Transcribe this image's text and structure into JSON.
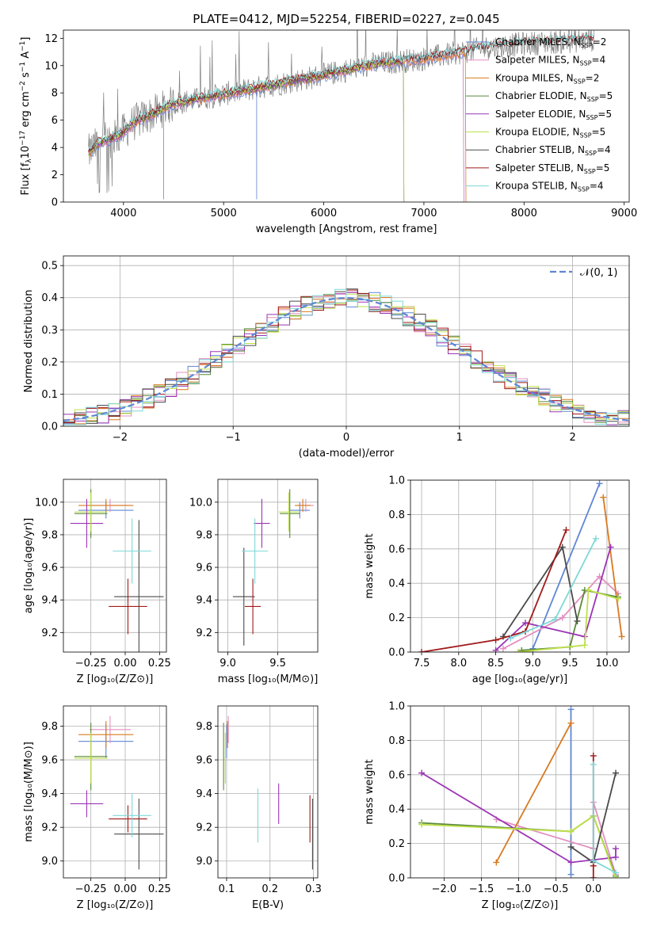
{
  "figure_title": "PLATE=0412, MJD=52254, FIBERID=0227, z=0.045",
  "palette": {
    "Chabrier MILES": "#5f86d4",
    "Salpeter MILES": "#e38fc0",
    "Kroupa MILES": "#d9791f",
    "Chabrier ELODIE": "#5a8a3c",
    "Salpeter ELODIE": "#9b35b5",
    "Kroupa ELODIE": "#bfe04a",
    "Chabrier STELIB": "#4a4a4a",
    "Salpeter STELIB": "#a11a1a",
    "Kroupa STELIB": "#7fd8d8",
    "data": "#808080",
    "normal": "#5f86d4"
  },
  "chart_data": [
    {
      "id": "spectrum",
      "type": "line",
      "title": "PLATE=0412, MJD=52254, FIBERID=0227, z=0.045",
      "xlabel": "wavelength [Angstrom, rest frame]",
      "ylabel_parts": [
        "Flux [f",
        "λ",
        "10",
        "−17",
        " erg cm",
        "−2",
        " s",
        "−1",
        " A",
        "−1",
        "]"
      ],
      "xlim": [
        3400,
        9050
      ],
      "ylim": [
        0,
        12.6
      ],
      "xticks": [
        4000,
        5000,
        6000,
        7000,
        8000,
        9000
      ],
      "yticks": [
        0,
        2,
        4,
        6,
        8,
        10,
        12
      ],
      "continuum": {
        "x": [
          3650,
          3750,
          3950,
          4100,
          4500,
          5000,
          5500,
          6000,
          6500,
          7000,
          7400,
          7600,
          8000,
          8500,
          8700
        ],
        "y": [
          3.6,
          4.3,
          4.8,
          5.8,
          7.2,
          7.9,
          8.6,
          9.3,
          10.1,
          10.5,
          11.0,
          11.3,
          11.6,
          11.8,
          11.9
        ]
      },
      "legend": [
        {
          "label": "Chabrier MILES, N",
          "sub": "SSP",
          "tail": "=2"
        },
        {
          "label": "Salpeter MILES, N",
          "sub": "SSP",
          "tail": "=4"
        },
        {
          "label": "Kroupa MILES, N",
          "sub": "SSP",
          "tail": "=2"
        },
        {
          "label": "Chabrier ELODIE, N",
          "sub": "SSP",
          "tail": "=5"
        },
        {
          "label": "Salpeter ELODIE, N",
          "sub": "SSP",
          "tail": "=5"
        },
        {
          "label": "Kroupa ELODIE, N",
          "sub": "SSP",
          "tail": "=5"
        },
        {
          "label": "Chabrier STELIB, N",
          "sub": "SSP",
          "tail": "=4"
        },
        {
          "label": "Salpeter STELIB, N",
          "sub": "SSP",
          "tail": "=5"
        },
        {
          "label": "Kroupa STELIB, N",
          "sub": "SSP",
          "tail": "=4"
        }
      ],
      "model_coverage": [
        {
          "name": "Chabrier MILES",
          "xmax": 7400
        },
        {
          "name": "Salpeter MILES",
          "xmax": 7400
        },
        {
          "name": "Kroupa MILES",
          "xmax": 7420
        },
        {
          "name": "Chabrier ELODIE",
          "xmax": 6800
        },
        {
          "name": "Salpeter ELODIE",
          "xmax": 6800
        },
        {
          "name": "Kroupa ELODIE",
          "xmax": 6800
        },
        {
          "name": "Chabrier STELIB",
          "xmax": 8700
        },
        {
          "name": "Salpeter STELIB",
          "xmax": 8700
        },
        {
          "name": "Kroupa STELIB",
          "xmax": 8700
        }
      ]
    },
    {
      "id": "residuals",
      "type": "histogram",
      "xlabel": "(data-model)/error",
      "ylabel": "Normed distribution",
      "xlim": [
        -2.5,
        2.5
      ],
      "ylim": [
        0,
        0.53
      ],
      "xticks": [
        -2,
        -1,
        0,
        1,
        2
      ],
      "yticks": [
        0.0,
        0.1,
        0.2,
        0.3,
        0.4,
        0.5
      ],
      "legend": "𝒩(0, 1)",
      "bin_width": 0.1
    },
    {
      "id": "z_age",
      "type": "errorbar",
      "xlabel": "Z [log₁₀(Z/Z⊙)]",
      "ylabel": "age  [log₁₀(age/yr)]",
      "xlim": [
        -0.45,
        0.3
      ],
      "ylim": [
        9.08,
        10.14
      ],
      "xticks": [
        -0.25,
        0.0,
        0.25
      ],
      "yticks": [
        9.2,
        9.4,
        9.6,
        9.8,
        10.0
      ],
      "points": [
        {
          "name": "Chabrier MILES",
          "x": -0.14,
          "xerr": 0.2,
          "y": 9.95,
          "yerr": 0.05
        },
        {
          "name": "Salpeter MILES",
          "x": -0.11,
          "xerr": 0.15,
          "y": 9.98,
          "yerr": 0.04
        },
        {
          "name": "Kroupa MILES",
          "x": -0.14,
          "xerr": 0.2,
          "y": 9.98,
          "yerr": 0.04
        },
        {
          "name": "Chabrier ELODIE",
          "x": -0.25,
          "xerr": 0.12,
          "y": 9.93,
          "yerr": 0.15
        },
        {
          "name": "Salpeter ELODIE",
          "x": -0.28,
          "xerr": 0.12,
          "y": 9.87,
          "yerr": 0.15
        },
        {
          "name": "Kroupa ELODIE",
          "x": -0.25,
          "xerr": 0.12,
          "y": 9.94,
          "yerr": 0.12
        },
        {
          "name": "Chabrier STELIB",
          "x": 0.1,
          "xerr": 0.18,
          "y": 9.42,
          "yerr": 0.47
        },
        {
          "name": "Salpeter STELIB",
          "x": 0.02,
          "xerr": 0.14,
          "y": 9.36,
          "yerr": 0.17
        },
        {
          "name": "Kroupa STELIB",
          "x": 0.05,
          "xerr": 0.14,
          "y": 9.7,
          "yerr": 0.2
        }
      ]
    },
    {
      "id": "mass_age",
      "type": "errorbar",
      "xlabel": "mass [log₁₀(M/M⊙)]",
      "ylabel": "",
      "xlim": [
        8.9,
        9.9
      ],
      "ylim": [
        9.08,
        10.14
      ],
      "xticks": [
        9.0,
        9.5
      ],
      "yticks": [
        9.2,
        9.4,
        9.6,
        9.8,
        10.0
      ],
      "points": [
        {
          "name": "Chabrier MILES",
          "x": 9.72,
          "xerr": 0.1,
          "y": 9.95,
          "yerr": 0.05
        },
        {
          "name": "Salpeter MILES",
          "x": 9.78,
          "xerr": 0.08,
          "y": 9.98,
          "yerr": 0.04
        },
        {
          "name": "Kroupa MILES",
          "x": 9.75,
          "xerr": 0.08,
          "y": 9.98,
          "yerr": 0.04
        },
        {
          "name": "Chabrier ELODIE",
          "x": 9.62,
          "xerr": 0.1,
          "y": 9.93,
          "yerr": 0.15
        },
        {
          "name": "Salpeter ELODIE",
          "x": 9.34,
          "xerr": 0.08,
          "y": 9.87,
          "yerr": 0.15
        },
        {
          "name": "Kroupa ELODIE",
          "x": 9.61,
          "xerr": 0.1,
          "y": 9.94,
          "yerr": 0.12
        },
        {
          "name": "Chabrier STELIB",
          "x": 9.16,
          "xerr": 0.11,
          "y": 9.42,
          "yerr": 0.3
        },
        {
          "name": "Salpeter STELIB",
          "x": 9.25,
          "xerr": 0.08,
          "y": 9.36,
          "yerr": 0.17
        },
        {
          "name": "Kroupa STELIB",
          "x": 9.27,
          "xerr": 0.13,
          "y": 9.7,
          "yerr": 0.2
        }
      ]
    },
    {
      "id": "age_weight",
      "type": "line",
      "xlabel": "age  [log₁₀(age/yr)]",
      "ylabel": "mass weight",
      "xlim": [
        7.35,
        10.3
      ],
      "ylim": [
        0,
        1.0
      ],
      "xticks": [
        7.5,
        8.0,
        8.5,
        9.0,
        9.5,
        10.0
      ],
      "yticks": [
        0.0,
        0.2,
        0.4,
        0.6,
        0.8,
        1.0
      ],
      "series": [
        {
          "name": "Chabrier MILES",
          "x": [
            9.0,
            9.9
          ],
          "y": [
            0.02,
            0.98
          ]
        },
        {
          "name": "Salpeter MILES",
          "x": [
            8.6,
            9.4,
            9.9,
            10.15
          ],
          "y": [
            0.02,
            0.2,
            0.44,
            0.34
          ]
        },
        {
          "name": "Kroupa MILES",
          "x": [
            9.95,
            10.2
          ],
          "y": [
            0.9,
            0.09
          ]
        },
        {
          "name": "Chabrier ELODIE",
          "x": [
            8.85,
            9.5,
            9.7,
            10.15
          ],
          "y": [
            0.01,
            0.03,
            0.36,
            0.32
          ]
        },
        {
          "name": "Salpeter ELODIE",
          "x": [
            8.5,
            8.9,
            9.7,
            10.05
          ],
          "y": [
            0.01,
            0.17,
            0.09,
            0.61
          ]
        },
        {
          "name": "Kroupa ELODIE",
          "x": [
            8.8,
            9.7,
            9.75,
            10.15
          ],
          "y": [
            0.0,
            0.04,
            0.36,
            0.31
          ]
        },
        {
          "name": "Chabrier STELIB",
          "x": [
            8.6,
            9.4,
            9.6
          ],
          "y": [
            0.09,
            0.61,
            0.18
          ]
        },
        {
          "name": "Salpeter STELIB",
          "x": [
            7.5,
            8.5,
            8.9,
            9.45
          ],
          "y": [
            0.0,
            0.07,
            0.12,
            0.71
          ]
        },
        {
          "name": "Kroupa STELIB",
          "x": [
            8.7,
            9.3,
            9.85
          ],
          "y": [
            0.08,
            0.19,
            0.66
          ]
        }
      ]
    },
    {
      "id": "z_mass",
      "type": "errorbar",
      "xlabel": "Z [log₁₀(Z/Z⊙)]",
      "ylabel": "mass [log₁₀(M/M⊙)]",
      "xlim": [
        -0.45,
        0.3
      ],
      "ylim": [
        8.9,
        9.92
      ],
      "xticks": [
        -0.25,
        0.0,
        0.25
      ],
      "yticks": [
        9.0,
        9.2,
        9.4,
        9.6,
        9.8
      ],
      "points": [
        {
          "name": "Chabrier MILES",
          "x": -0.14,
          "xerr": 0.2,
          "y": 9.71,
          "yerr": 0.1
        },
        {
          "name": "Salpeter MILES",
          "x": -0.11,
          "xerr": 0.15,
          "y": 9.78,
          "yerr": 0.08
        },
        {
          "name": "Kroupa MILES",
          "x": -0.14,
          "xerr": 0.2,
          "y": 9.75,
          "yerr": 0.08
        },
        {
          "name": "Chabrier ELODIE",
          "x": -0.25,
          "xerr": 0.12,
          "y": 9.62,
          "yerr": 0.2
        },
        {
          "name": "Salpeter ELODIE",
          "x": -0.28,
          "xerr": 0.12,
          "y": 9.34,
          "yerr": 0.08
        },
        {
          "name": "Kroupa ELODIE",
          "x": -0.25,
          "xerr": 0.12,
          "y": 9.61,
          "yerr": 0.15
        },
        {
          "name": "Chabrier STELIB",
          "x": 0.1,
          "xerr": 0.18,
          "y": 9.16,
          "yerr": 0.21
        },
        {
          "name": "Salpeter STELIB",
          "x": 0.02,
          "xerr": 0.14,
          "y": 9.25,
          "yerr": 0.08
        },
        {
          "name": "Kroupa STELIB",
          "x": 0.05,
          "xerr": 0.14,
          "y": 9.27,
          "yerr": 0.13
        }
      ]
    },
    {
      "id": "ebv_mass",
      "type": "errorbar",
      "xlabel": "E(B-V)",
      "ylabel": "",
      "xlim": [
        0.08,
        0.31
      ],
      "ylim": [
        8.9,
        9.92
      ],
      "xticks": [
        0.1,
        0.2,
        0.3
      ],
      "yticks": [
        9.0,
        9.2,
        9.4,
        9.6,
        9.8
      ],
      "points": [
        {
          "name": "Chabrier MILES",
          "x": 0.1,
          "xerr": 0,
          "y": 9.71,
          "yerr": 0.1
        },
        {
          "name": "Salpeter MILES",
          "x": 0.104,
          "xerr": 0,
          "y": 9.78,
          "yerr": 0.08
        },
        {
          "name": "Kroupa MILES",
          "x": 0.102,
          "xerr": 0,
          "y": 9.75,
          "yerr": 0.08
        },
        {
          "name": "Chabrier ELODIE",
          "x": 0.093,
          "xerr": 0,
          "y": 9.62,
          "yerr": 0.2
        },
        {
          "name": "Salpeter ELODIE",
          "x": 0.22,
          "xerr": 0,
          "y": 9.34,
          "yerr": 0.12
        },
        {
          "name": "Kroupa ELODIE",
          "x": 0.097,
          "xerr": 0,
          "y": 9.61,
          "yerr": 0.15
        },
        {
          "name": "Chabrier STELIB",
          "x": 0.298,
          "xerr": 0,
          "y": 9.16,
          "yerr": 0.21
        },
        {
          "name": "Salpeter STELIB",
          "x": 0.292,
          "xerr": 0,
          "y": 9.25,
          "yerr": 0.14
        },
        {
          "name": "Kroupa STELIB",
          "x": 0.172,
          "xerr": 0,
          "y": 9.27,
          "yerr": 0.16
        }
      ]
    },
    {
      "id": "z_weight",
      "type": "line",
      "xlabel": "Z [log₁₀(Z/Z⊙)]",
      "ylabel": "mass weight",
      "xlim": [
        -2.45,
        0.48
      ],
      "ylim": [
        0,
        1.0
      ],
      "xticks": [
        -2.0,
        -1.5,
        -1.0,
        -0.5,
        0.0
      ],
      "yticks": [
        0.0,
        0.2,
        0.4,
        0.6,
        0.8,
        1.0
      ],
      "series": [
        {
          "name": "Chabrier MILES",
          "x": [
            -0.3,
            -0.3
          ],
          "y": [
            0.02,
            0.98
          ]
        },
        {
          "name": "Salpeter MILES",
          "x": [
            -1.3,
            0.0,
            0.0,
            0.3
          ],
          "y": [
            0.34,
            0.17,
            0.44,
            0.02
          ]
        },
        {
          "name": "Kroupa MILES",
          "x": [
            -1.3,
            -0.3
          ],
          "y": [
            0.09,
            0.9
          ]
        },
        {
          "name": "Chabrier ELODIE",
          "x": [
            -2.3,
            -0.3,
            0.0,
            0.3
          ],
          "y": [
            0.32,
            0.27,
            0.36,
            0.01
          ]
        },
        {
          "name": "Salpeter ELODIE",
          "x": [
            -2.3,
            -0.3,
            0.3,
            0.3
          ],
          "y": [
            0.61,
            0.09,
            0.12,
            0.17
          ]
        },
        {
          "name": "Kroupa ELODIE",
          "x": [
            -2.3,
            -0.3,
            0.0,
            0.3
          ],
          "y": [
            0.31,
            0.27,
            0.36,
            0.0
          ]
        },
        {
          "name": "Chabrier STELIB",
          "x": [
            -0.3,
            0.0,
            0.3
          ],
          "y": [
            0.18,
            0.09,
            0.61
          ]
        },
        {
          "name": "Salpeter STELIB",
          "x": [
            0.0,
            0.0,
            0.0
          ],
          "y": [
            0.0,
            0.07,
            0.71
          ]
        },
        {
          "name": "Kroupa STELIB",
          "x": [
            0.0,
            0.0,
            0.3
          ],
          "y": [
            0.66,
            0.1,
            0.03
          ]
        }
      ]
    }
  ]
}
